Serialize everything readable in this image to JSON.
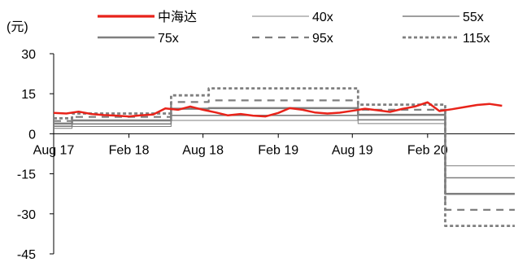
{
  "chart_data": {
    "type": "line",
    "ylabel": "(元)",
    "ylim": [
      -45,
      30
    ],
    "yticks": [
      30,
      15,
      0,
      -15,
      -30,
      -45
    ],
    "xlim": [
      "2017-08-01",
      "2020-09-01"
    ],
    "xticks": [
      {
        "label": "Aug 17",
        "date": "2017-08-01"
      },
      {
        "label": "Feb 18",
        "date": "2018-02-01"
      },
      {
        "label": "Aug 18",
        "date": "2018-08-01"
      },
      {
        "label": "Feb 19",
        "date": "2019-02-01"
      },
      {
        "label": "Aug 19",
        "date": "2019-08-01"
      },
      {
        "label": "Feb 20",
        "date": "2020-02-01"
      }
    ],
    "legend_position": "top",
    "series": [
      {
        "name": "中海达",
        "style": "solid-thick",
        "color": "#e8231a",
        "points": [
          [
            "2017-08-01",
            7.8
          ],
          [
            "2017-09-01",
            7.6
          ],
          [
            "2017-10-01",
            8.3
          ],
          [
            "2017-11-01",
            7.4
          ],
          [
            "2017-12-01",
            7.0
          ],
          [
            "2018-01-01",
            6.8
          ],
          [
            "2018-02-01",
            6.5
          ],
          [
            "2018-03-01",
            6.9
          ],
          [
            "2018-04-01",
            7.2
          ],
          [
            "2018-05-01",
            9.5
          ],
          [
            "2018-06-01",
            9.0
          ],
          [
            "2018-07-01",
            10.2
          ],
          [
            "2018-08-01",
            9.0
          ],
          [
            "2018-09-01",
            8.0
          ],
          [
            "2018-10-01",
            6.9
          ],
          [
            "2018-11-01",
            7.4
          ],
          [
            "2018-12-01",
            6.8
          ],
          [
            "2019-01-01",
            6.5
          ],
          [
            "2019-02-01",
            7.8
          ],
          [
            "2019-03-01",
            9.6
          ],
          [
            "2019-04-01",
            9.0
          ],
          [
            "2019-05-01",
            8.0
          ],
          [
            "2019-06-01",
            7.6
          ],
          [
            "2019-07-01",
            7.9
          ],
          [
            "2019-08-01",
            8.6
          ],
          [
            "2019-09-01",
            9.4
          ],
          [
            "2019-10-01",
            8.8
          ],
          [
            "2019-11-01",
            8.2
          ],
          [
            "2019-12-01",
            9.3
          ],
          [
            "2020-01-01",
            10.2
          ],
          [
            "2020-02-01",
            11.8
          ],
          [
            "2020-03-01",
            8.5
          ],
          [
            "2020-04-01",
            9.2
          ],
          [
            "2020-05-01",
            10.0
          ],
          [
            "2020-06-01",
            10.8
          ],
          [
            "2020-07-01",
            11.2
          ],
          [
            "2020-08-01",
            10.5
          ]
        ]
      },
      {
        "name": "40x",
        "style": "solid-thin",
        "color": "#7f7f7f",
        "points": [
          [
            "2017-08-01",
            2.0
          ],
          [
            "2017-09-15",
            2.0
          ],
          [
            "2017-09-15",
            2.7
          ],
          [
            "2018-05-15",
            2.7
          ],
          [
            "2018-05-15",
            5.0
          ],
          [
            "2019-08-15",
            5.0
          ],
          [
            "2019-08-15",
            3.8
          ],
          [
            "2020-03-15",
            3.8
          ],
          [
            "2020-03-15",
            -12.0
          ],
          [
            "2020-09-01",
            -12.0
          ]
        ]
      },
      {
        "name": "55x",
        "style": "solid-medium",
        "color": "#7f7f7f",
        "points": [
          [
            "2017-08-01",
            2.8
          ],
          [
            "2017-09-15",
            2.8
          ],
          [
            "2017-09-15",
            3.7
          ],
          [
            "2018-05-15",
            3.7
          ],
          [
            "2018-05-15",
            6.9
          ],
          [
            "2019-08-15",
            6.9
          ],
          [
            "2019-08-15",
            5.2
          ],
          [
            "2020-03-15",
            5.2
          ],
          [
            "2020-03-15",
            -16.5
          ],
          [
            "2020-09-01",
            -16.5
          ]
        ]
      },
      {
        "name": "75x",
        "style": "solid-thick",
        "color": "#7f7f7f",
        "points": [
          [
            "2017-08-01",
            3.8
          ],
          [
            "2017-09-15",
            3.8
          ],
          [
            "2017-09-15",
            5.0
          ],
          [
            "2018-05-15",
            5.0
          ],
          [
            "2018-05-15",
            9.4
          ],
          [
            "2018-08-15",
            9.4
          ],
          [
            "2018-08-15",
            9.6
          ],
          [
            "2019-08-15",
            9.6
          ],
          [
            "2019-08-15",
            7.1
          ],
          [
            "2020-03-15",
            7.1
          ],
          [
            "2020-03-15",
            -22.5
          ],
          [
            "2020-09-01",
            -22.5
          ]
        ]
      },
      {
        "name": "95x",
        "style": "dashed",
        "color": "#7f7f7f",
        "points": [
          [
            "2017-08-01",
            4.8
          ],
          [
            "2017-09-15",
            4.8
          ],
          [
            "2017-09-15",
            6.3
          ],
          [
            "2018-05-15",
            6.3
          ],
          [
            "2018-05-15",
            11.9
          ],
          [
            "2018-08-15",
            11.9
          ],
          [
            "2018-08-15",
            12.5
          ],
          [
            "2019-08-15",
            12.5
          ],
          [
            "2019-08-15",
            9.0
          ],
          [
            "2020-03-15",
            9.0
          ],
          [
            "2020-03-15",
            -28.5
          ],
          [
            "2020-09-01",
            -28.5
          ]
        ]
      },
      {
        "name": "115x",
        "style": "dotted-thick",
        "color": "#7f7f7f",
        "points": [
          [
            "2017-08-01",
            5.8
          ],
          [
            "2017-09-15",
            5.8
          ],
          [
            "2017-09-15",
            7.6
          ],
          [
            "2018-05-15",
            7.6
          ],
          [
            "2018-05-15",
            14.4
          ],
          [
            "2018-08-15",
            14.4
          ],
          [
            "2018-08-15",
            17.0
          ],
          [
            "2019-08-15",
            17.0
          ],
          [
            "2019-08-15",
            10.9
          ],
          [
            "2020-03-15",
            10.9
          ],
          [
            "2020-03-15",
            -34.5
          ],
          [
            "2020-09-01",
            -34.5
          ]
        ]
      }
    ]
  }
}
